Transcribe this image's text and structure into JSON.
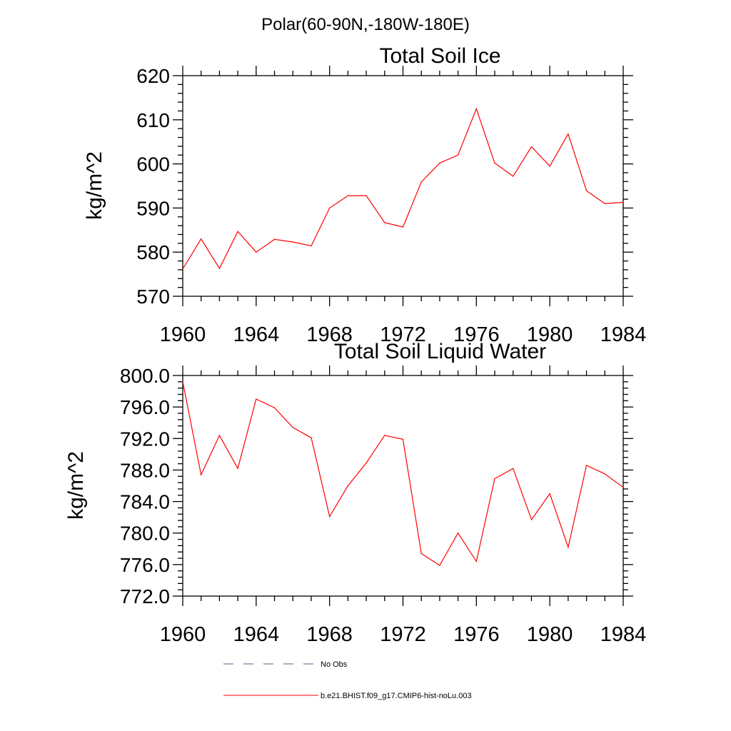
{
  "figure_title": "Polar(60-90N,-180W-180E)",
  "chart_data": [
    {
      "type": "line",
      "title": "Total Soil Ice",
      "xlabel": "",
      "ylabel": "kg/m^2",
      "xlim": [
        1960,
        1984
      ],
      "ylim": [
        570,
        620
      ],
      "x_ticks": [
        "1960",
        "1964",
        "1968",
        "1972",
        "1976",
        "1980",
        "1984"
      ],
      "y_ticks": [
        "570",
        "580",
        "590",
        "600",
        "610",
        "620"
      ],
      "grid": false,
      "series": [
        {
          "color": "#ff0000",
          "x": [
            1960,
            1961,
            1962,
            1963,
            1964,
            1965,
            1966,
            1967,
            1968,
            1969,
            1970,
            1971,
            1972,
            1973,
            1974,
            1975,
            1976,
            1977,
            1978,
            1979,
            1980,
            1981,
            1982,
            1983,
            1984
          ],
          "values": [
            576.2,
            583.0,
            576.3,
            584.7,
            580.0,
            582.9,
            582.3,
            581.4,
            590.0,
            592.8,
            592.8,
            586.7,
            585.7,
            595.9,
            600.2,
            602.0,
            612.5,
            600.2,
            597.2,
            603.9,
            599.5,
            606.8,
            593.9,
            591.0,
            591.3
          ]
        }
      ]
    },
    {
      "type": "line",
      "title": "Total Soil Liquid Water",
      "xlabel": "",
      "ylabel": "kg/m^2",
      "xlim": [
        1960,
        1984
      ],
      "ylim": [
        772,
        800
      ],
      "x_ticks": [
        "1960",
        "1964",
        "1968",
        "1972",
        "1976",
        "1980",
        "1984"
      ],
      "y_ticks": [
        "772.0",
        "776.0",
        "780.0",
        "784.0",
        "788.0",
        "792.0",
        "796.0",
        "800.0"
      ],
      "grid": false,
      "series": [
        {
          "color": "#ff0000",
          "x": [
            1960,
            1961,
            1962,
            1963,
            1964,
            1965,
            1966,
            1967,
            1968,
            1969,
            1970,
            1971,
            1972,
            1973,
            1974,
            1975,
            1976,
            1977,
            1978,
            1979,
            1980,
            1981,
            1982,
            1983,
            1984
          ],
          "values": [
            799.2,
            787.4,
            792.4,
            788.2,
            797.0,
            795.9,
            793.4,
            792.1,
            782.1,
            786.0,
            788.9,
            792.4,
            791.9,
            777.4,
            775.9,
            780.0,
            776.4,
            786.9,
            788.2,
            781.7,
            785.0,
            778.2,
            788.6,
            787.5,
            785.8
          ]
        }
      ]
    }
  ],
  "legend": [
    {
      "label": "No Obs",
      "style": "dashed",
      "color": "#5a5a8a"
    },
    {
      "label": "b.e21.BHIST.f09_g17.CMIP6-hist-noLu.003",
      "style": "solid",
      "color": "#ff0000"
    }
  ]
}
